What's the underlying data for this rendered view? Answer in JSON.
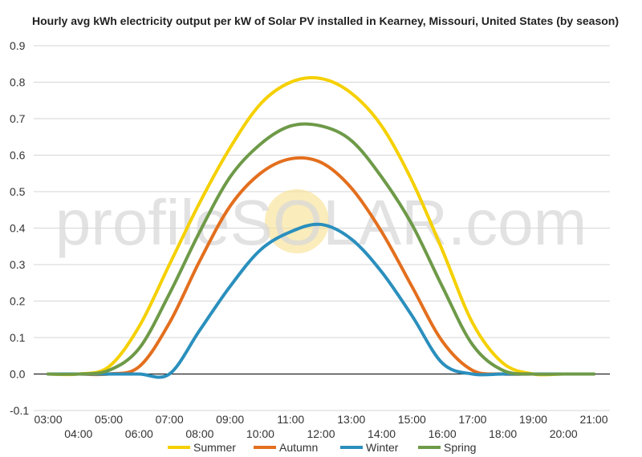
{
  "chart_data": {
    "type": "line",
    "title": "Hourly avg kWh electricity output per kW of Solar PV installed in Kearney, Missouri, United States (by season)",
    "xlabel": "",
    "ylabel": "",
    "ylim": [
      -0.1,
      0.9
    ],
    "yticks": [
      "-0.1",
      "0.0",
      "0.1",
      "0.2",
      "0.3",
      "0.4",
      "0.5",
      "0.6",
      "0.7",
      "0.8",
      "0.9"
    ],
    "x": [
      "03:00",
      "04:00",
      "05:00",
      "06:00",
      "07:00",
      "08:00",
      "09:00",
      "10:00",
      "11:00",
      "12:00",
      "13:00",
      "14:00",
      "15:00",
      "16:00",
      "17:00",
      "18:00",
      "19:00",
      "20:00",
      "21:00"
    ],
    "legend_position": "bottom",
    "grid": true,
    "watermark": {
      "text": "profileSOLAR.com",
      "sun_color": "#f8e08e"
    },
    "series": [
      {
        "name": "Summer",
        "color": "#f5d000",
        "values": [
          0.0,
          0.0,
          0.02,
          0.13,
          0.3,
          0.47,
          0.62,
          0.74,
          0.8,
          0.81,
          0.77,
          0.68,
          0.53,
          0.34,
          0.14,
          0.03,
          0.0,
          0.0,
          0.0
        ]
      },
      {
        "name": "Autumn",
        "color": "#e36f1e",
        "values": [
          0.0,
          0.0,
          0.0,
          0.02,
          0.14,
          0.31,
          0.46,
          0.55,
          0.59,
          0.58,
          0.51,
          0.39,
          0.24,
          0.09,
          0.01,
          0.0,
          0.0,
          0.0,
          0.0
        ]
      },
      {
        "name": "Winter",
        "color": "#2a8fbd",
        "values": [
          0.0,
          0.0,
          0.0,
          0.0,
          0.0,
          0.12,
          0.24,
          0.34,
          0.39,
          0.41,
          0.37,
          0.28,
          0.16,
          0.03,
          0.0,
          0.0,
          0.0,
          0.0,
          0.0
        ]
      },
      {
        "name": "Spring",
        "color": "#6e9a48",
        "values": [
          0.0,
          0.0,
          0.01,
          0.07,
          0.22,
          0.39,
          0.54,
          0.63,
          0.68,
          0.68,
          0.64,
          0.54,
          0.41,
          0.24,
          0.08,
          0.01,
          0.0,
          0.0,
          0.0
        ]
      }
    ]
  }
}
